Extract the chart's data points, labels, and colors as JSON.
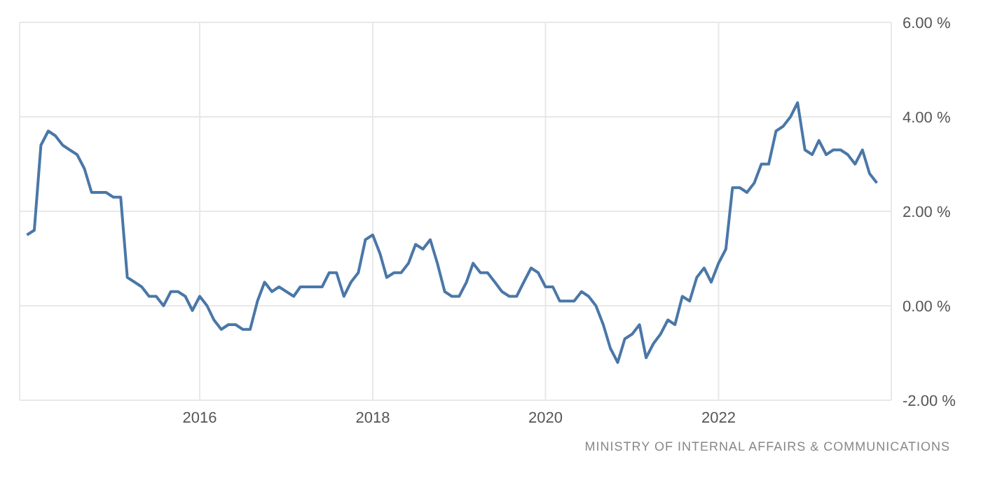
{
  "chart_data": {
    "type": "line",
    "x": [
      "2014-01",
      "2014-02",
      "2014-03",
      "2014-04",
      "2014-05",
      "2014-06",
      "2014-07",
      "2014-08",
      "2014-09",
      "2014-10",
      "2014-11",
      "2014-12",
      "2015-01",
      "2015-02",
      "2015-03",
      "2015-04",
      "2015-05",
      "2015-06",
      "2015-07",
      "2015-08",
      "2015-09",
      "2015-10",
      "2015-11",
      "2015-12",
      "2016-01",
      "2016-02",
      "2016-03",
      "2016-04",
      "2016-05",
      "2016-06",
      "2016-07",
      "2016-08",
      "2016-09",
      "2016-10",
      "2016-11",
      "2016-12",
      "2017-01",
      "2017-02",
      "2017-03",
      "2017-04",
      "2017-05",
      "2017-06",
      "2017-07",
      "2017-08",
      "2017-09",
      "2017-10",
      "2017-11",
      "2017-12",
      "2018-01",
      "2018-02",
      "2018-03",
      "2018-04",
      "2018-05",
      "2018-06",
      "2018-07",
      "2018-08",
      "2018-09",
      "2018-10",
      "2018-11",
      "2018-12",
      "2019-01",
      "2019-02",
      "2019-03",
      "2019-04",
      "2019-05",
      "2019-06",
      "2019-07",
      "2019-08",
      "2019-09",
      "2019-10",
      "2019-11",
      "2019-12",
      "2020-01",
      "2020-02",
      "2020-03",
      "2020-04",
      "2020-05",
      "2020-06",
      "2020-07",
      "2020-08",
      "2020-09",
      "2020-10",
      "2020-11",
      "2020-12",
      "2021-01",
      "2021-02",
      "2021-03",
      "2021-04",
      "2021-05",
      "2021-06",
      "2021-07",
      "2021-08",
      "2021-09",
      "2021-10",
      "2021-11",
      "2021-12",
      "2022-01",
      "2022-02",
      "2022-03",
      "2022-04",
      "2022-05",
      "2022-06",
      "2022-07",
      "2022-08",
      "2022-09",
      "2022-10",
      "2022-11",
      "2022-12",
      "2023-01",
      "2023-02",
      "2023-03",
      "2023-04",
      "2023-05",
      "2023-06",
      "2023-07",
      "2023-08",
      "2023-09",
      "2023-10",
      "2023-11"
    ],
    "series": [
      {
        "color": "#4a77a8",
        "values": [
          1.5,
          1.6,
          3.4,
          3.7,
          3.6,
          3.4,
          3.3,
          3.2,
          2.9,
          2.4,
          2.4,
          2.4,
          2.3,
          2.3,
          0.6,
          0.5,
          0.4,
          0.2,
          0.2,
          0.0,
          0.3,
          0.3,
          0.2,
          -0.1,
          0.2,
          0.0,
          -0.3,
          -0.5,
          -0.4,
          -0.4,
          -0.5,
          -0.5,
          0.1,
          0.5,
          0.3,
          0.4,
          0.3,
          0.2,
          0.4,
          0.4,
          0.4,
          0.4,
          0.7,
          0.7,
          0.2,
          0.5,
          0.7,
          1.4,
          1.5,
          1.1,
          0.6,
          0.7,
          0.7,
          0.9,
          1.3,
          1.2,
          1.4,
          0.9,
          0.3,
          0.2,
          0.2,
          0.5,
          0.9,
          0.7,
          0.7,
          0.5,
          0.3,
          0.2,
          0.2,
          0.5,
          0.8,
          0.7,
          0.4,
          0.4,
          0.1,
          0.1,
          0.1,
          0.3,
          0.2,
          0.0,
          -0.4,
          -0.9,
          -1.2,
          -0.7,
          -0.6,
          -0.4,
          -1.1,
          -0.8,
          -0.6,
          -0.3,
          -0.4,
          0.2,
          0.1,
          0.6,
          0.8,
          0.5,
          0.9,
          1.2,
          2.5,
          2.5,
          2.4,
          2.6,
          3.0,
          3.0,
          3.7,
          3.8,
          4.0,
          4.3,
          3.3,
          3.2,
          3.5,
          3.2,
          3.3,
          3.3,
          3.2,
          3.0,
          3.3,
          2.8,
          2.6
        ]
      }
    ],
    "xlim": [
      "2013-12",
      "2024-01"
    ],
    "xticks": [
      "2016",
      "2018",
      "2020",
      "2022"
    ],
    "ylim": [
      -2,
      6
    ],
    "yticks": [
      {
        "value": -2,
        "label": "-2.00 %"
      },
      {
        "value": 0,
        "label": "0.00 %"
      },
      {
        "value": 2,
        "label": "2.00 %"
      },
      {
        "value": 4,
        "label": "4.00 %"
      },
      {
        "value": 6,
        "label": "6.00 %"
      }
    ],
    "grid": true,
    "marker": "none",
    "line_style": "solid",
    "annotations": [
      "MINISTRY OF INTERNAL AFFAIRS & COMMUNICATIONS"
    ]
  }
}
